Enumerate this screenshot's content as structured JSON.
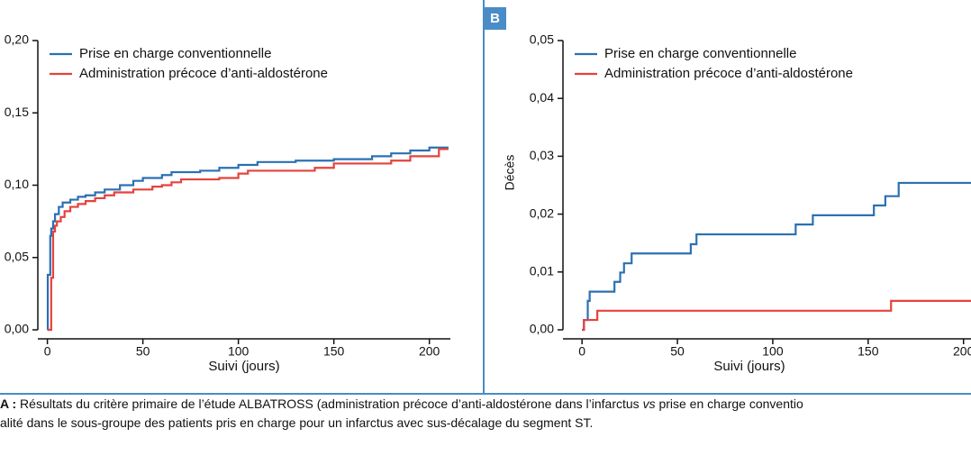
{
  "chart_data": [
    {
      "type": "line",
      "step": true,
      "xlabel": "Suivi (jours)",
      "xlim": [
        -5,
        211
      ],
      "xticks": [
        0,
        50,
        100,
        150,
        200
      ],
      "ylim": [
        0,
        0.2
      ],
      "yticks": [
        {
          "value": 0,
          "label": "0,00"
        },
        {
          "value": 0.05,
          "label": "0,05"
        },
        {
          "value": 0.1,
          "label": "0,10"
        },
        {
          "value": 0.15,
          "label": "0,15"
        },
        {
          "value": 0.2,
          "label": "0,20"
        }
      ],
      "series": [
        {
          "name": "Prise en charge conventionnelle",
          "color": "#2b70b3",
          "x": [
            0,
            0.2,
            1.5,
            2,
            3,
            4,
            6,
            8,
            12,
            16,
            20,
            25,
            30,
            38,
            45,
            50,
            60,
            65,
            80,
            90,
            100,
            110,
            130,
            150,
            170,
            180,
            190,
            200,
            210
          ],
          "values": [
            0,
            0.038,
            0.065,
            0.07,
            0.075,
            0.08,
            0.085,
            0.088,
            0.09,
            0.092,
            0.093,
            0.095,
            0.097,
            0.1,
            0.103,
            0.105,
            0.107,
            0.109,
            0.11,
            0.112,
            0.114,
            0.116,
            0.117,
            0.118,
            0.12,
            0.122,
            0.124,
            0.126,
            0.126
          ]
        },
        {
          "name": "Administration précoce d’anti-aldostérone",
          "color": "#e5423d",
          "x": [
            0,
            2,
            3,
            4,
            5,
            7,
            9,
            12,
            16,
            20,
            25,
            30,
            35,
            45,
            55,
            60,
            65,
            70,
            90,
            100,
            105,
            140,
            150,
            180,
            190,
            205,
            210
          ],
          "values": [
            0,
            0.036,
            0.068,
            0.072,
            0.075,
            0.078,
            0.082,
            0.085,
            0.087,
            0.089,
            0.091,
            0.093,
            0.095,
            0.097,
            0.099,
            0.1,
            0.102,
            0.104,
            0.105,
            0.108,
            0.11,
            0.112,
            0.115,
            0.117,
            0.12,
            0.125,
            0.125
          ]
        }
      ]
    },
    {
      "type": "line",
      "step": true,
      "panel_label": "B",
      "xlabel": "Suivi (jours)",
      "ylabel": "Décès",
      "xlim": [
        -10,
        211
      ],
      "xticks": [
        0,
        50,
        100,
        150,
        200
      ],
      "ylim": [
        0,
        0.05
      ],
      "yticks": [
        {
          "value": 0,
          "label": "0,00"
        },
        {
          "value": 0.01,
          "label": "0,01"
        },
        {
          "value": 0.02,
          "label": "0,02"
        },
        {
          "value": 0.03,
          "label": "0,03"
        },
        {
          "value": 0.04,
          "label": "0,04"
        },
        {
          "value": 0.05,
          "label": "0,05"
        }
      ],
      "series": [
        {
          "name": "Prise en charge conventionnelle",
          "color": "#2b70b3",
          "x": [
            0,
            1,
            3,
            4,
            12,
            17,
            20,
            22,
            26,
            57,
            60,
            112,
            121,
            153,
            159,
            166,
            211
          ],
          "values": [
            0,
            0.0017,
            0.005,
            0.0066,
            0.0066,
            0.0083,
            0.0099,
            0.0115,
            0.0132,
            0.0148,
            0.0165,
            0.0182,
            0.0198,
            0.0215,
            0.0231,
            0.0254,
            0.0254
          ]
        },
        {
          "name": "Administration précoce d’anti-aldostérone",
          "color": "#e5423d",
          "x": [
            0,
            1,
            8,
            162,
            211
          ],
          "values": [
            0,
            0.0017,
            0.0033,
            0.005,
            0.005
          ]
        }
      ]
    }
  ],
  "caption": {
    "lead": "A :",
    "line1a": " Résultats du critère primaire de l’étude ALBATROSS (administration précoce d’anti-aldostérone dans l’infarctus ",
    "line1b": "vs",
    "line1c": " prise en charge conventio",
    "line2": "alité dans le sous-groupe des patients pris en charge pour un infarctus avec sus-décalage du segment ST."
  }
}
